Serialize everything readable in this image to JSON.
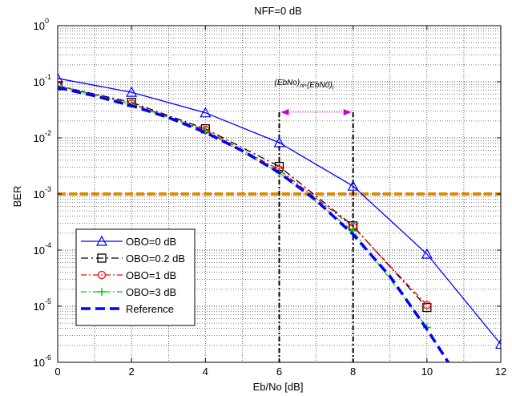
{
  "chart_data": {
    "type": "line",
    "title": "NFF=0 dB",
    "xlabel": "Eb/No [dB]",
    "ylabel": "BER",
    "xlim": [
      0,
      12
    ],
    "ylim_exponent": [
      -6,
      0
    ],
    "y_scale": "log",
    "grid": true,
    "legend_position": "bottom-left",
    "xticks": [
      "0",
      "2",
      "4",
      "6",
      "8",
      "10",
      "12"
    ],
    "yticks": [
      {
        "base": "10",
        "exp": "0"
      },
      {
        "base": "10",
        "exp": "-1"
      },
      {
        "base": "10",
        "exp": "-2"
      },
      {
        "base": "10",
        "exp": "-3"
      },
      {
        "base": "10",
        "exp": "-4"
      },
      {
        "base": "10",
        "exp": "-5"
      },
      {
        "base": "10",
        "exp": "-6"
      }
    ],
    "series": [
      {
        "name": "OBO=0 dB",
        "color": "#0000ff",
        "dash": "solid",
        "width": 1.3,
        "marker": "triangle",
        "x": [
          0,
          2,
          4,
          6,
          8,
          10,
          12
        ],
        "y": [
          0.115,
          0.065,
          0.028,
          0.0082,
          0.00138,
          8.5e-05,
          2.1e-06
        ]
      },
      {
        "name": "OBO=0.2 dB",
        "color": "#000000",
        "dash": "9,4,2,4",
        "width": 1.3,
        "marker": "square",
        "x": [
          0,
          2,
          4,
          6,
          8,
          10
        ],
        "y": [
          0.085,
          0.043,
          0.0145,
          0.0031,
          0.00027,
          9.5e-06
        ]
      },
      {
        "name": "OBO=1 dB",
        "color": "#ff0000",
        "dash": "7,3,2,3",
        "width": 1.3,
        "marker": "circle",
        "x": [
          0,
          2,
          4,
          6,
          8,
          10
        ],
        "y": [
          0.085,
          0.041,
          0.0138,
          0.0027,
          0.00026,
          1.05e-05
        ]
      },
      {
        "name": "OBO=3 dB",
        "color": "#00cc00",
        "dash": "7,3,2,3",
        "width": 1.3,
        "marker": "plus",
        "x": [
          0,
          2,
          4,
          6,
          8,
          10
        ],
        "y": [
          0.084,
          0.04,
          0.0132,
          0.0024,
          0.00022,
          4.2e-06
        ]
      },
      {
        "name": "Reference",
        "color": "#0000ff",
        "dash": "12,6",
        "width": 3.5,
        "marker": "none",
        "x": [
          0,
          1,
          2,
          3,
          4,
          5,
          6,
          7,
          8,
          9,
          10,
          10.6
        ],
        "y": [
          0.079,
          0.056,
          0.0375,
          0.023,
          0.0125,
          0.0059,
          0.0024,
          0.00077,
          0.00019,
          3.4e-05,
          3.9e-06,
          9.5e-07
        ]
      }
    ],
    "threshold_line": {
      "y": 0.001,
      "color": "#e08a00"
    },
    "annotation": {
      "text_a": "(EbNo)",
      "sub_a": "nl",
      "text_mid": "-(EbN0)",
      "sub_b": "l",
      "x_from": 6,
      "x_to": 8,
      "arrow_color": "#cc00cc"
    }
  }
}
